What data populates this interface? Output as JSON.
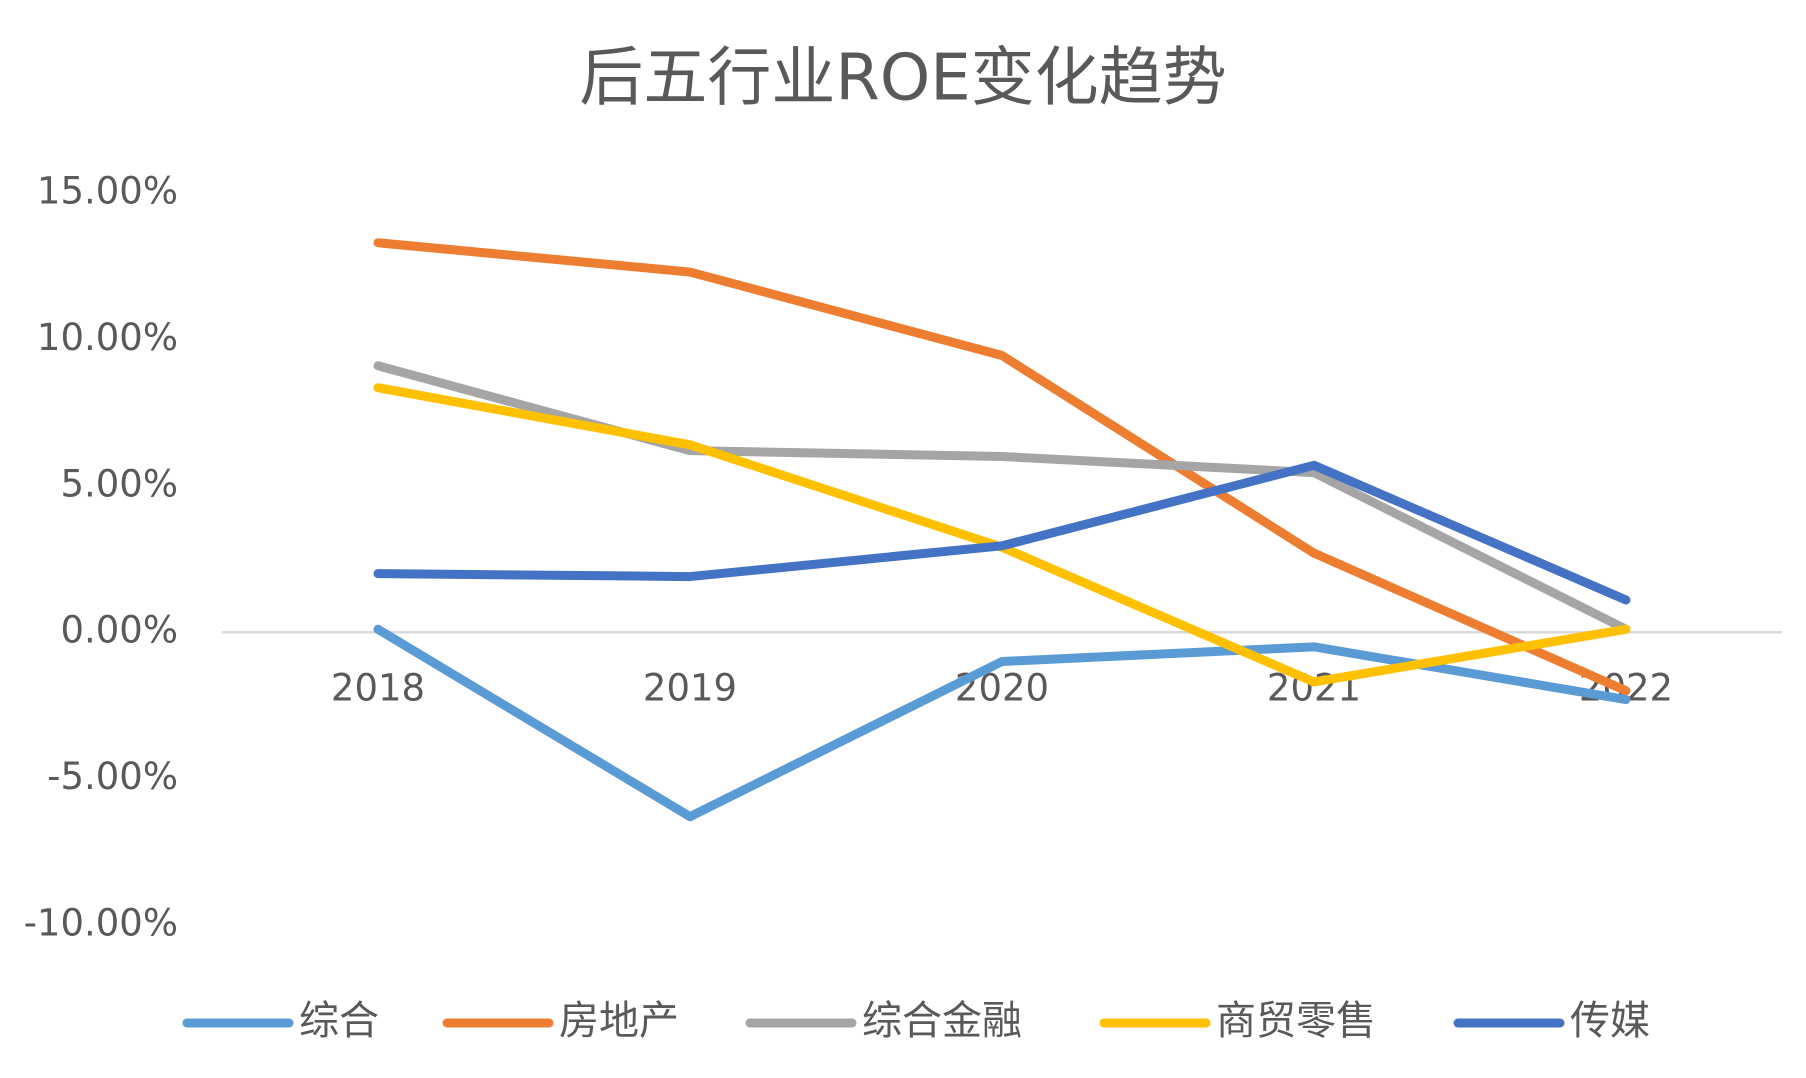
{
  "chart_data": {
    "type": "line",
    "title": "后五行业ROE变化趋势",
    "categories": [
      "2018",
      "2019",
      "2020",
      "2021",
      "2022"
    ],
    "series": [
      {
        "name": "综合",
        "color": "#5b9bd5",
        "values": [
          0.1,
          -6.3,
          -1.0,
          -0.5,
          -2.3
        ]
      },
      {
        "name": "房地产",
        "color": "#ed7d31",
        "values": [
          13.3,
          12.3,
          9.45,
          2.7,
          -2.0
        ]
      },
      {
        "name": "综合金融",
        "color": "#a5a5a5",
        "values": [
          9.1,
          6.2,
          6.0,
          5.45,
          0.1
        ]
      },
      {
        "name": "商贸零售",
        "color": "#ffc000",
        "values": [
          8.35,
          6.4,
          2.9,
          -1.7,
          0.1
        ]
      },
      {
        "name": "传媒",
        "color": "#4472c4",
        "values": [
          2.0,
          1.9,
          2.95,
          5.7,
          1.1
        ]
      }
    ],
    "ylim": [
      -10,
      15
    ],
    "yticks": [
      {
        "value": -10,
        "label": "-10.00%"
      },
      {
        "value": -5,
        "label": "-5.00%"
      },
      {
        "value": 0,
        "label": "0.00%"
      },
      {
        "value": 5,
        "label": "5.00%"
      },
      {
        "value": 10,
        "label": "10.00%"
      },
      {
        "value": 15,
        "label": "15.00%"
      }
    ],
    "grid": false,
    "legend": "bottom"
  }
}
